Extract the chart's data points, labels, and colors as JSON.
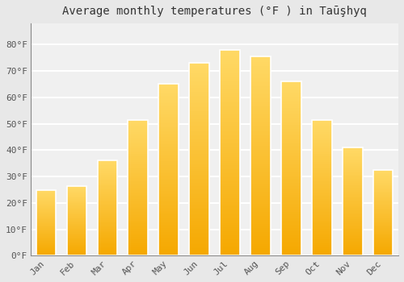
{
  "title": "Average monthly temperatures (°F ) in Taūşhyq",
  "months": [
    "Jan",
    "Feb",
    "Mar",
    "Apr",
    "May",
    "Jun",
    "Jul",
    "Aug",
    "Sep",
    "Oct",
    "Nov",
    "Dec"
  ],
  "values": [
    25,
    26.5,
    36,
    51.5,
    65,
    73,
    78,
    75.5,
    66,
    51.5,
    41,
    32.5
  ],
  "bar_color_bottom": "#F5A800",
  "bar_color_top": "#FFD966",
  "bar_edge_color": "#FFFFFF",
  "background_color": "#E8E8E8",
  "plot_background_color": "#F0F0F0",
  "grid_color": "#FFFFFF",
  "ylim": [
    0,
    88
  ],
  "yticks": [
    0,
    10,
    20,
    30,
    40,
    50,
    60,
    70,
    80
  ],
  "ytick_labels": [
    "0°F",
    "10°F",
    "20°F",
    "30°F",
    "40°F",
    "50°F",
    "60°F",
    "70°F",
    "80°F"
  ],
  "title_fontsize": 10,
  "tick_fontsize": 8,
  "font_family": "monospace"
}
